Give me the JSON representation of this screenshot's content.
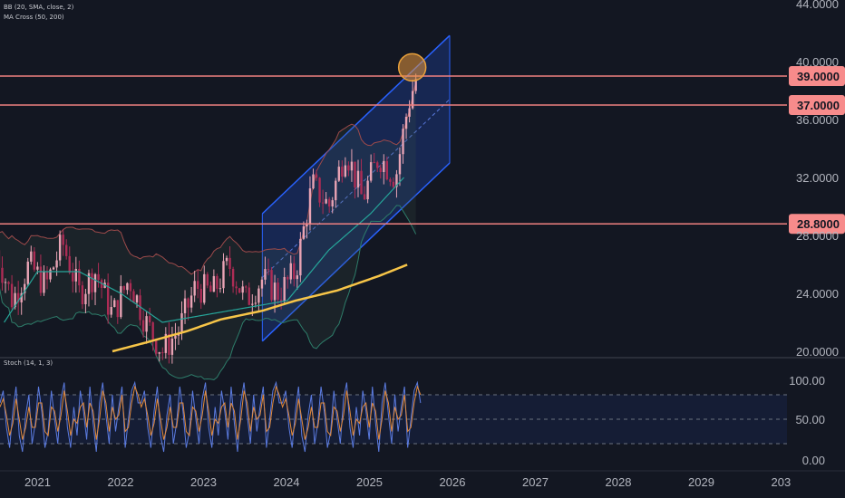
{
  "legend": {
    "indicator_1": "BB (20, SMA, close, 2)",
    "indicator_2": "MA Cross (50, 200)",
    "oscillator": "Stoch (14, 1, 3)"
  },
  "chart_data": [
    {
      "type": "line",
      "panel": "price",
      "y_axis_labels": [
        "44.0000",
        "40.0000",
        "36.0000",
        "32.0000",
        "28.0000",
        "24.0000",
        "20.0000"
      ],
      "ylim": [
        20,
        44
      ],
      "x_tick_labels": [
        "2021",
        "2022",
        "2023",
        "2024",
        "2025",
        "2026",
        "2027",
        "2028",
        "2029",
        "203"
      ],
      "horizontal_levels": [
        {
          "value": 39.0,
          "label": "39.0000"
        },
        {
          "value": 37.0,
          "label": "37.0000"
        },
        {
          "value": 28.8,
          "label": "28.8000"
        }
      ],
      "series": [
        {
          "kind": "price",
          "x": [
            2020.5,
            2020.7,
            2020.9,
            2021.1,
            2021.3,
            2021.5,
            2021.7,
            2021.9,
            2022.1,
            2022.3,
            2022.5,
            2022.7,
            2022.9,
            2023.1,
            2023.3,
            2023.5,
            2023.7,
            2023.9,
            2024.1,
            2024.3,
            2024.5,
            2024.7,
            2024.9,
            2025.1,
            2025.3,
            2025.45,
            2025.58
          ],
          "values": [
            27.0,
            23.5,
            26.0,
            24.5,
            27.5,
            24.0,
            25.5,
            22.5,
            25.0,
            22.0,
            20.0,
            21.5,
            24.5,
            24.0,
            26.0,
            23.5,
            25.0,
            24.0,
            25.5,
            31.5,
            30.0,
            34.0,
            30.5,
            33.5,
            32.0,
            37.0,
            39.5
          ]
        },
        {
          "kind": "ma50",
          "color": "#26a69a",
          "x": [
            2020.6,
            2021.0,
            2021.5,
            2022.0,
            2022.5,
            2023.0,
            2023.5,
            2024.0,
            2024.5,
            2025.0,
            2025.4
          ],
          "values": [
            22.0,
            25.5,
            25.5,
            24.0,
            22.0,
            22.5,
            23.0,
            23.5,
            27.0,
            29.5,
            32.0
          ]
        },
        {
          "kind": "ma200",
          "color": "#f7c548",
          "x": [
            2021.9,
            2022.3,
            2022.8,
            2023.2,
            2023.7,
            2024.1,
            2024.6,
            2025.1,
            2025.45
          ],
          "values": [
            20.0,
            20.6,
            21.4,
            22.2,
            22.8,
            23.5,
            24.2,
            25.2,
            26.0
          ]
        }
      ],
      "channel": {
        "upper": [
          {
            "x": 2023.7,
            "y": 29.5
          },
          {
            "x": 2025.95,
            "y": 41.8
          }
        ],
        "middle": [
          {
            "x": 2023.7,
            "y": 25.1
          },
          {
            "x": 2025.95,
            "y": 37.4
          }
        ],
        "lower": [
          {
            "x": 2023.7,
            "y": 20.7
          },
          {
            "x": 2025.95,
            "y": 33.0
          }
        ]
      },
      "highlight": {
        "x": 2025.5,
        "y": 39.6
      }
    },
    {
      "type": "line",
      "panel": "oscillator",
      "y_axis_labels": [
        "100.00",
        "50.00",
        "0.00"
      ],
      "ylim": [
        0,
        100
      ],
      "bands": [
        80,
        50,
        20
      ],
      "series": [
        {
          "name": "%K",
          "color": "#5b7be0",
          "values": [
            70,
            85,
            40,
            15,
            60,
            90,
            30,
            10,
            55,
            80,
            20,
            45,
            90,
            60,
            15,
            35,
            85,
            50,
            20,
            75,
            95,
            40,
            15,
            65,
            30,
            85,
            60,
            25,
            90,
            45,
            10,
            70,
            95,
            55,
            20,
            80,
            35,
            65,
            90,
            15,
            50,
            85,
            95,
            70
          ]
        },
        {
          "name": "%D",
          "color": "#e38a3a",
          "values": [
            65,
            75,
            55,
            30,
            45,
            75,
            50,
            25,
            40,
            65,
            40,
            40,
            70,
            70,
            35,
            30,
            65,
            60,
            35,
            55,
            85,
            60,
            30,
            50,
            45,
            65,
            70,
            40,
            70,
            60,
            25,
            50,
            85,
            70,
            35,
            65,
            50,
            55,
            80,
            35,
            40,
            70,
            90,
            80
          ]
        }
      ]
    }
  ]
}
